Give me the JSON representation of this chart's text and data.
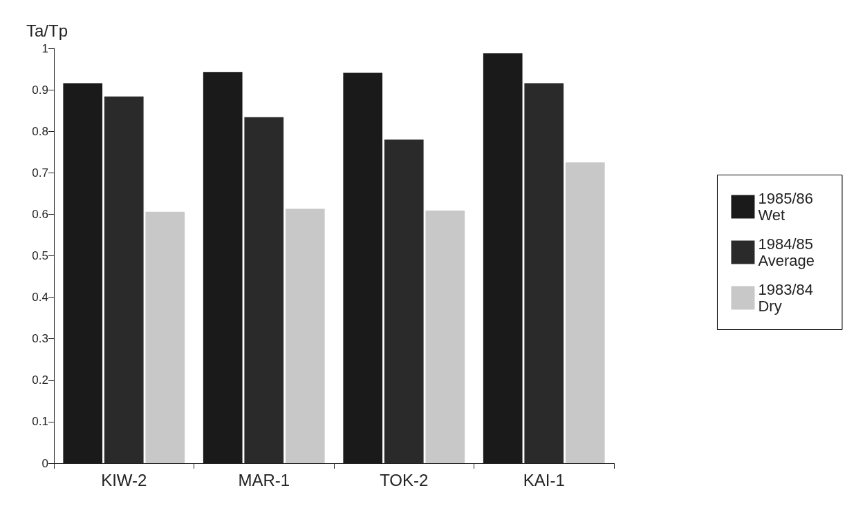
{
  "chart_data": {
    "type": "bar",
    "ylabel": "Ta/Tp",
    "categories": [
      "KIW-2",
      "MAR-1",
      "TOK-2",
      "KAI-1"
    ],
    "series": [
      {
        "name": "1985/86\nWet",
        "color": "#1a1a1a",
        "values": [
          0.916,
          0.943,
          0.941,
          0.988
        ]
      },
      {
        "name": "1984/85\nAverage",
        "color": "#2a2a2a",
        "values": [
          0.884,
          0.834,
          0.78,
          0.916
        ]
      },
      {
        "name": "1983/84\nDry",
        "color": "#c8c8c8",
        "values": [
          0.606,
          0.613,
          0.609,
          0.725
        ]
      }
    ],
    "ylim": [
      0,
      1
    ],
    "yticks": [
      0,
      0.1,
      0.2,
      0.3,
      0.4,
      0.5,
      0.6,
      0.7,
      0.8,
      0.9,
      1
    ],
    "grid": false,
    "legend": "right"
  }
}
